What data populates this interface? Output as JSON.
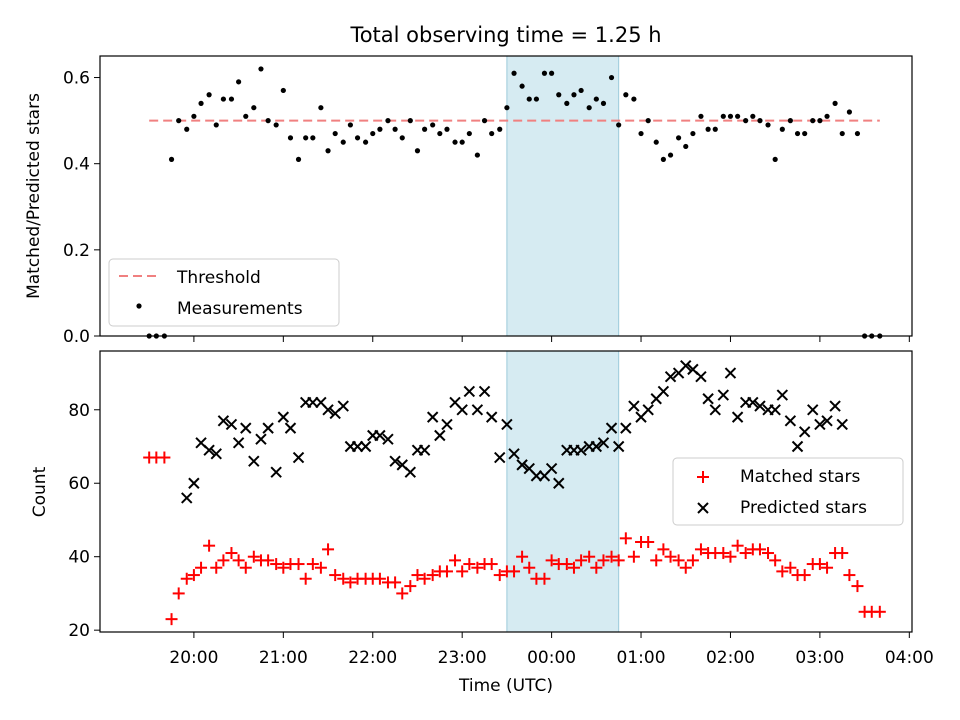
{
  "figure": {
    "title": "Total observing time = 1.25 h"
  },
  "chart_data": [
    {
      "type": "scatter",
      "panel": "top",
      "title": "Total observing time = 1.25 h",
      "xlabel": "",
      "ylabel": "Matched/Predicted stars",
      "x_unit": "hours after 00:00 UTC",
      "xlim": [
        -5.05,
        4.03
      ],
      "ylim": [
        0,
        0.65
      ],
      "yticks": [
        0.0,
        0.2,
        0.4,
        0.6
      ],
      "ytick_labels": [
        "0.0",
        "0.2",
        "0.4",
        "0.6"
      ],
      "xticks": [
        -4,
        -3,
        -2,
        -1,
        0,
        1,
        2,
        3,
        4
      ],
      "shaded_span": {
        "x0": -0.5,
        "x1": 0.75,
        "color": "#add8e6"
      },
      "threshold": {
        "name": "Threshold",
        "y": 0.5,
        "x0": -4.5,
        "x1": 3.67,
        "color": "#f08080",
        "style": "dashed"
      },
      "legend": {
        "position": "lower-left",
        "entries": [
          "Threshold",
          "Measurements"
        ]
      },
      "series": [
        {
          "name": "Measurements",
          "marker": "dot",
          "color": "#000000",
          "x": [
            -4.5,
            -4.42,
            -4.33,
            -4.25,
            -4.17,
            -4.08,
            -4.0,
            -3.92,
            -3.83,
            -3.75,
            -3.67,
            -3.58,
            -3.5,
            -3.42,
            -3.33,
            -3.25,
            -3.17,
            -3.08,
            -3.0,
            -2.92,
            -2.83,
            -2.75,
            -2.67,
            -2.58,
            -2.5,
            -2.42,
            -2.33,
            -2.25,
            -2.17,
            -2.08,
            -2.0,
            -1.92,
            -1.83,
            -1.75,
            -1.67,
            -1.58,
            -1.5,
            -1.42,
            -1.33,
            -1.25,
            -1.17,
            -1.08,
            -1.0,
            -0.92,
            -0.83,
            -0.75,
            -0.67,
            -0.58,
            -0.5,
            -0.42,
            -0.33,
            -0.25,
            -0.17,
            -0.08,
            0.0,
            0.08,
            0.17,
            0.25,
            0.33,
            0.42,
            0.5,
            0.58,
            0.67,
            0.75,
            0.83,
            0.92,
            1.0,
            1.08,
            1.17,
            1.25,
            1.33,
            1.42,
            1.5,
            1.58,
            1.67,
            1.75,
            1.83,
            1.92,
            2.0,
            2.08,
            2.17,
            2.25,
            2.33,
            2.42,
            2.5,
            2.58,
            2.67,
            2.75,
            2.83,
            2.92,
            3.0,
            3.08,
            3.17,
            3.25,
            3.33,
            3.42,
            3.5,
            3.58,
            3.67
          ],
          "y": [
            0.0,
            0.0,
            0.0,
            0.41,
            0.5,
            0.48,
            0.51,
            0.54,
            0.56,
            0.49,
            0.55,
            0.55,
            0.59,
            0.51,
            0.53,
            0.62,
            0.5,
            0.49,
            0.57,
            0.46,
            0.41,
            0.46,
            0.46,
            0.53,
            0.43,
            0.47,
            0.45,
            0.49,
            0.46,
            0.45,
            0.47,
            0.48,
            0.5,
            0.48,
            0.46,
            0.5,
            0.43,
            0.48,
            0.49,
            0.47,
            0.48,
            0.45,
            0.45,
            0.47,
            0.42,
            0.5,
            0.47,
            0.48,
            0.53,
            0.61,
            0.58,
            0.55,
            0.55,
            0.61,
            0.61,
            0.56,
            0.54,
            0.56,
            0.57,
            0.53,
            0.55,
            0.54,
            0.6,
            0.49,
            0.56,
            0.55,
            0.47,
            0.5,
            0.45,
            0.41,
            0.42,
            0.46,
            0.44,
            0.47,
            0.51,
            0.48,
            0.48,
            0.51,
            0.51,
            0.51,
            0.5,
            0.51,
            0.5,
            0.49,
            0.41,
            0.48,
            0.5,
            0.47,
            0.47,
            0.5,
            0.5,
            0.51,
            0.54,
            0.47,
            0.52,
            0.47,
            0.0,
            0.0,
            0.0
          ]
        }
      ]
    },
    {
      "type": "scatter",
      "panel": "bottom",
      "title": "",
      "xlabel": "Time (UTC)",
      "ylabel": "Count",
      "x_unit": "hours after 00:00 UTC",
      "xlim": [
        -5.05,
        4.03
      ],
      "ylim": [
        19.5,
        96
      ],
      "yticks": [
        20,
        40,
        60,
        80
      ],
      "ytick_labels": [
        "20",
        "40",
        "60",
        "80"
      ],
      "xticks": [
        -4,
        -3,
        -2,
        -1,
        0,
        1,
        2,
        3,
        4
      ],
      "xtick_labels": [
        "20:00",
        "21:00",
        "22:00",
        "23:00",
        "00:00",
        "01:00",
        "02:00",
        "03:00",
        "04:00"
      ],
      "shaded_span": {
        "x0": -0.5,
        "x1": 0.75,
        "color": "#add8e6"
      },
      "legend": {
        "position": "center-right",
        "entries": [
          "Matched stars",
          "Predicted stars"
        ]
      },
      "series": [
        {
          "name": "Matched stars",
          "marker": "plus",
          "color": "#ff0000",
          "x": [
            -4.5,
            -4.42,
            -4.33,
            -4.25,
            -4.17,
            -4.08,
            -4.0,
            -3.92,
            -3.83,
            -3.75,
            -3.67,
            -3.58,
            -3.5,
            -3.42,
            -3.33,
            -3.25,
            -3.17,
            -3.08,
            -3.0,
            -2.92,
            -2.83,
            -2.75,
            -2.67,
            -2.58,
            -2.5,
            -2.42,
            -2.33,
            -2.25,
            -2.17,
            -2.08,
            -2.0,
            -1.92,
            -1.83,
            -1.75,
            -1.67,
            -1.58,
            -1.5,
            -1.42,
            -1.33,
            -1.25,
            -1.17,
            -1.08,
            -1.0,
            -0.92,
            -0.83,
            -0.75,
            -0.67,
            -0.58,
            -0.5,
            -0.42,
            -0.33,
            -0.25,
            -0.17,
            -0.08,
            0.0,
            0.08,
            0.17,
            0.25,
            0.33,
            0.42,
            0.5,
            0.58,
            0.67,
            0.75,
            0.83,
            0.92,
            1.0,
            1.08,
            1.17,
            1.25,
            1.33,
            1.42,
            1.5,
            1.58,
            1.67,
            1.75,
            1.83,
            1.92,
            2.0,
            2.08,
            2.17,
            2.25,
            2.33,
            2.42,
            2.5,
            2.58,
            2.67,
            2.75,
            2.83,
            2.92,
            3.0,
            3.08,
            3.17,
            3.25,
            3.33,
            3.42,
            3.5,
            3.58,
            3.67
          ],
          "y": [
            67,
            67,
            67,
            23,
            30,
            34,
            35,
            37,
            43,
            37,
            39,
            41,
            39,
            37,
            40,
            39,
            39,
            38,
            37,
            38,
            38,
            34,
            38,
            37,
            42,
            35,
            34,
            33,
            34,
            34,
            34,
            34,
            33,
            33,
            30,
            32,
            35,
            34,
            35,
            36,
            36,
            39,
            36,
            38,
            37,
            38,
            38,
            35,
            36,
            36,
            40,
            37,
            34,
            34,
            39,
            38,
            38,
            37,
            39,
            40,
            37,
            39,
            40,
            39,
            45,
            40,
            44,
            44,
            39,
            42,
            40,
            39,
            37,
            39,
            42,
            41,
            41,
            41,
            40,
            43,
            41,
            42,
            42,
            41,
            39,
            36,
            37,
            35,
            35,
            38,
            38,
            37,
            41,
            41,
            35,
            32,
            25,
            25,
            25
          ]
        },
        {
          "name": "Predicted stars",
          "marker": "x",
          "color": "#000000",
          "x": [
            -4.08,
            -4.0,
            -3.92,
            -3.83,
            -3.75,
            -3.67,
            -3.58,
            -3.5,
            -3.42,
            -3.33,
            -3.25,
            -3.17,
            -3.08,
            -3.0,
            -2.92,
            -2.83,
            -2.75,
            -2.67,
            -2.58,
            -2.5,
            -2.42,
            -2.33,
            -2.25,
            -2.17,
            -2.08,
            -2.0,
            -1.92,
            -1.83,
            -1.75,
            -1.67,
            -1.58,
            -1.5,
            -1.42,
            -1.33,
            -1.25,
            -1.17,
            -1.08,
            -1.0,
            -0.92,
            -0.83,
            -0.75,
            -0.67,
            -0.58,
            -0.5,
            -0.42,
            -0.33,
            -0.25,
            -0.17,
            -0.08,
            0.0,
            0.08,
            0.17,
            0.25,
            0.33,
            0.42,
            0.5,
            0.58,
            0.67,
            0.75,
            0.83,
            0.92,
            1.0,
            1.08,
            1.17,
            1.25,
            1.33,
            1.42,
            1.5,
            1.58,
            1.67,
            1.75,
            1.83,
            1.92,
            2.0,
            2.08,
            2.17,
            2.25,
            2.33,
            2.42,
            2.5,
            2.58,
            2.67,
            2.75,
            2.83,
            2.92,
            3.0,
            3.08,
            3.17,
            3.25
          ],
          "y": [
            56,
            60,
            71,
            69,
            68,
            77,
            76,
            71,
            75,
            66,
            72,
            75,
            63,
            78,
            75,
            67,
            82,
            82,
            82,
            80,
            79,
            81,
            70,
            70,
            70,
            73,
            73,
            72,
            66,
            65,
            63,
            69,
            69,
            78,
            73,
            76,
            82,
            80,
            85,
            80,
            85,
            78,
            67,
            76,
            68,
            65,
            64,
            62,
            62,
            64,
            60,
            69,
            69,
            69,
            70,
            70,
            71,
            75,
            70,
            75,
            81,
            78,
            80,
            83,
            85,
            89,
            90,
            92,
            91,
            89,
            83,
            80,
            84,
            90,
            78,
            82,
            82,
            81,
            80,
            80,
            84,
            77,
            70,
            74,
            80,
            76,
            77,
            81,
            76
          ]
        }
      ]
    }
  ]
}
